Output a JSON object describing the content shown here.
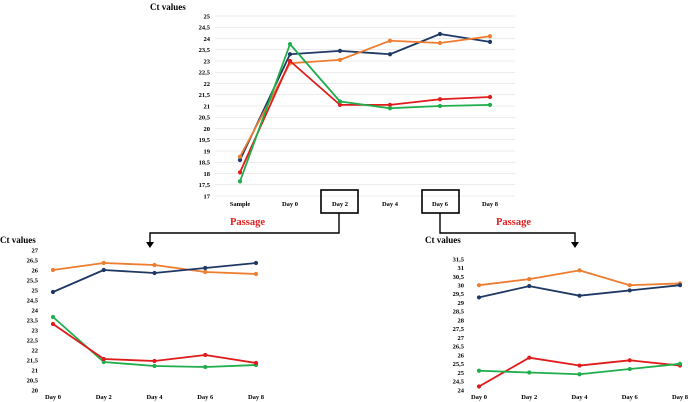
{
  "chart_data": [
    {
      "type": "line",
      "ylabel": "Ct values",
      "categories": [
        "Sample",
        "Day 0",
        "Day 2",
        "Day 4",
        "Day 6",
        "Day 8"
      ],
      "ylim": [
        17,
        25
      ],
      "ystep": 0.5,
      "grid": true,
      "series": [
        {
          "color": "#1f3864",
          "values": [
            18.6,
            23.3,
            23.45,
            23.3,
            24.2,
            23.85
          ]
        },
        {
          "color": "#ed7d31",
          "values": [
            18.75,
            22.9,
            23.05,
            23.9,
            23.8,
            24.1
          ]
        },
        {
          "color": "#e01b1b",
          "values": [
            18.05,
            23.0,
            21.05,
            21.05,
            21.3,
            21.4
          ]
        },
        {
          "color": "#1fae4b",
          "values": [
            17.65,
            23.75,
            21.2,
            20.9,
            21.0,
            21.05
          ]
        }
      ],
      "highlighted_categories": [
        "Day 2",
        "Day 6"
      ]
    },
    {
      "type": "line",
      "ylabel": "Ct values",
      "categories": [
        "Day 0",
        "Day 2",
        "Day 4",
        "Day 6",
        "Day 8"
      ],
      "ylim": [
        20,
        27
      ],
      "ystep": 0.5,
      "grid": false,
      "series": [
        {
          "color": "#ed7d31",
          "values": [
            26.0,
            26.35,
            26.25,
            25.9,
            25.8
          ]
        },
        {
          "color": "#1f3864",
          "values": [
            24.9,
            26.0,
            25.85,
            26.1,
            26.35
          ]
        },
        {
          "color": "#1fae4b",
          "values": [
            23.65,
            21.4,
            21.2,
            21.15,
            21.25
          ]
        },
        {
          "color": "#e01b1b",
          "values": [
            23.3,
            21.55,
            21.45,
            21.75,
            21.35
          ]
        }
      ]
    },
    {
      "type": "line",
      "ylabel": "Ct values",
      "categories": [
        "Day 0",
        "Day 2",
        "Day 4",
        "Day 6",
        "Day 8"
      ],
      "ylim": [
        24,
        31.5
      ],
      "ystep": 0.5,
      "grid": false,
      "series": [
        {
          "color": "#ed7d31",
          "values": [
            30.0,
            30.35,
            30.85,
            30.0,
            30.1
          ]
        },
        {
          "color": "#1f3864",
          "values": [
            29.3,
            29.95,
            29.4,
            29.7,
            30.0
          ]
        },
        {
          "color": "#e01b1b",
          "values": [
            24.2,
            25.85,
            25.4,
            25.7,
            25.4
          ]
        },
        {
          "color": "#1fae4b",
          "values": [
            25.1,
            25.0,
            24.9,
            25.2,
            25.5
          ]
        }
      ]
    }
  ],
  "annotations": {
    "passage_left": "Passage",
    "passage_right": "Passage"
  }
}
